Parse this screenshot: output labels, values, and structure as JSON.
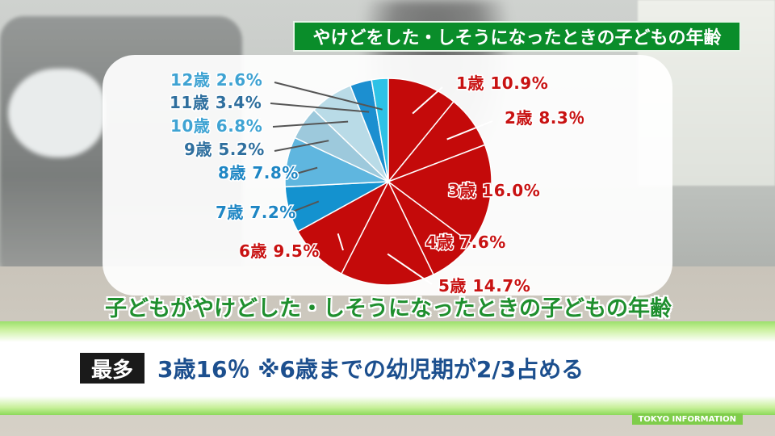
{
  "title": "やけどをした・しそうになったときの子どもの年齢",
  "subtitle": "子どもがやけどした・しそうになったときの子どもの年齢",
  "badge": "最多",
  "headline": "3歳16％ ※6歳までの幼児期が2/3占める",
  "footer_credit": "TOKYO INFORMATION",
  "colors": {
    "red": "#c40a0a",
    "label_red": "#c81212",
    "label_blue": "#1e86c4",
    "blue_dark": "#1492cf",
    "blue_mid": "#37a6db",
    "blue_light": "#9dc9dc",
    "blue_pale": "#b9dbe7",
    "cyan": "#2ec2e6"
  },
  "chart_data": {
    "type": "pie",
    "title": "やけどをした・しそうになったときの子どもの年齢",
    "categories": [
      "1歳",
      "2歳",
      "3歳",
      "4歳",
      "5歳",
      "6歳",
      "7歳",
      "8歳",
      "9歳",
      "10歳",
      "11歳",
      "12歳"
    ],
    "values": [
      10.9,
      8.3,
      16.0,
      7.6,
      14.7,
      9.5,
      7.2,
      7.8,
      5.2,
      6.8,
      3.4,
      2.6
    ],
    "labels": [
      "10.9%",
      "8.3％",
      "16.0%",
      "7.6%",
      "14.7%",
      "9.5%",
      "7.2%",
      "7.8%",
      "5.2%",
      "6.8%",
      "3.4%",
      "2.6%"
    ],
    "slice_colors": [
      "#c40a0a",
      "#c40a0a",
      "#c40a0a",
      "#c40a0a",
      "#c40a0a",
      "#c40a0a",
      "#1492cf",
      "#5fb6df",
      "#9dc9dc",
      "#b9dbe7",
      "#1c8fd0",
      "#2ec2e6"
    ],
    "label_colors": [
      "#c81212",
      "#c81212",
      "#c81212",
      "#c81212",
      "#c81212",
      "#c81212",
      "#1e86c4",
      "#1e86c4",
      "#2f6f9e",
      "#3fa3d3",
      "#2f6f9e",
      "#3fa3d3"
    ]
  }
}
